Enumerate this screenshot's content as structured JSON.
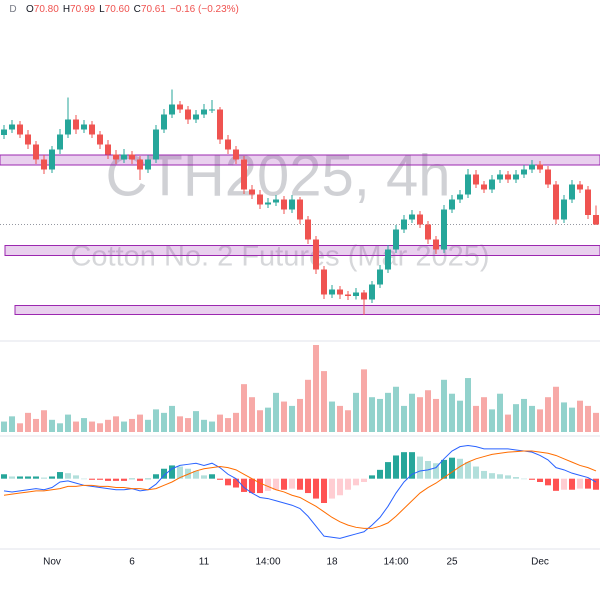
{
  "chart_data": {
    "type": "candlestick",
    "badge": "D",
    "legend": [
      {
        "key": "O",
        "value": "70.80"
      },
      {
        "key": "H",
        "value": "70.99"
      },
      {
        "key": "L",
        "value": "70.60"
      },
      {
        "key": "C",
        "value": "70.61"
      }
    ],
    "change": "−0.16 (−0.23%)",
    "title": "CTH2025, 4h",
    "subtitle": "Cotton No. 2 Futures (Mar 2025)",
    "categories": [
      null,
      null,
      null,
      null,
      null,
      null,
      "Nov",
      null,
      null,
      null,
      null,
      null,
      null,
      null,
      null,
      null,
      "6",
      null,
      null,
      null,
      null,
      null,
      null,
      null,
      null,
      "11",
      null,
      null,
      null,
      null,
      null,
      null,
      null,
      "14:00",
      null,
      null,
      null,
      null,
      null,
      null,
      null,
      "18",
      null,
      null,
      null,
      null,
      null,
      null,
      null,
      "14:00",
      null,
      null,
      null,
      null,
      null,
      null,
      "25",
      null,
      null,
      null,
      null,
      null,
      null,
      null,
      null,
      null,
      null,
      "Dec",
      null,
      null,
      null,
      null,
      null,
      null,
      null
    ],
    "open": [
      72.4,
      72.51,
      72.61,
      72.41,
      72.21,
      71.91,
      71.71,
      72.11,
      72.41,
      72.71,
      72.51,
      72.61,
      72.41,
      72.21,
      72.01,
      71.91,
      72.01,
      71.91,
      71.71,
      71.91,
      72.51,
      72.81,
      73.01,
      72.91,
      72.71,
      72.81,
      72.91,
      72.91,
      72.31,
      72.11,
      71.91,
      71.31,
      71.21,
      71.01,
      71.05,
      71.11,
      70.91,
      71.11,
      70.71,
      70.31,
      69.71,
      69.21,
      69.31,
      69.21,
      69.18,
      69.25,
      69.11,
      69.41,
      69.71,
      70.11,
      70.51,
      70.71,
      70.81,
      70.61,
      70.31,
      70.11,
      70.91,
      71.11,
      71.21,
      71.61,
      71.41,
      71.31,
      71.51,
      71.61,
      71.51,
      71.61,
      71.71,
      71.81,
      71.71,
      71.41,
      70.71,
      71.11,
      71.41,
      71.31,
      70.8
    ],
    "high": [
      72.6,
      72.7,
      72.68,
      72.5,
      72.28,
      72.0,
      72.18,
      72.52,
      73.15,
      72.8,
      72.7,
      72.68,
      72.48,
      72.3,
      72.1,
      72.12,
      72.08,
      71.98,
      72.0,
      72.6,
      72.92,
      73.31,
      73.08,
      72.98,
      72.9,
      73.02,
      73.1,
      72.96,
      72.4,
      72.18,
      71.98,
      71.4,
      71.3,
      71.14,
      71.2,
      71.18,
      71.2,
      71.16,
      70.78,
      70.38,
      69.78,
      69.4,
      69.38,
      69.28,
      69.34,
      69.3,
      69.48,
      69.8,
      70.2,
      70.6,
      70.8,
      70.9,
      70.88,
      70.68,
      70.38,
      71.0,
      71.2,
      71.3,
      71.72,
      71.7,
      71.48,
      71.6,
      71.7,
      71.68,
      71.7,
      71.8,
      71.9,
      71.88,
      71.78,
      71.48,
      71.2,
      71.5,
      71.48,
      71.38,
      70.99
    ],
    "low": [
      72.32,
      72.44,
      72.34,
      72.12,
      71.82,
      71.62,
      71.64,
      72.02,
      72.34,
      72.42,
      72.44,
      72.34,
      72.12,
      71.92,
      71.82,
      71.84,
      71.82,
      71.5,
      71.64,
      71.84,
      72.44,
      72.74,
      72.84,
      72.62,
      72.64,
      72.74,
      72.84,
      72.22,
      72.02,
      71.82,
      71.22,
      71.12,
      70.92,
      70.94,
      70.98,
      70.82,
      70.84,
      70.62,
      70.22,
      69.62,
      69.12,
      69.14,
      69.12,
      69.1,
      69.11,
      68.8,
      69.04,
      69.34,
      69.64,
      70.04,
      70.44,
      70.64,
      70.54,
      70.22,
      70.02,
      70.04,
      70.84,
      71.04,
      71.14,
      71.34,
      71.24,
      71.24,
      71.44,
      71.44,
      71.44,
      71.54,
      71.64,
      71.64,
      71.34,
      70.62,
      70.64,
      71.04,
      71.24,
      70.72,
      70.6
    ],
    "close": [
      72.51,
      72.61,
      72.41,
      72.21,
      71.91,
      71.71,
      72.11,
      72.41,
      72.71,
      72.51,
      72.61,
      72.41,
      72.21,
      72.01,
      71.91,
      72.01,
      71.91,
      71.71,
      71.91,
      72.51,
      72.81,
      73.01,
      72.91,
      72.71,
      72.81,
      72.91,
      72.91,
      72.31,
      72.11,
      71.91,
      71.31,
      71.21,
      71.01,
      71.05,
      71.11,
      70.91,
      71.11,
      70.71,
      70.31,
      69.71,
      69.21,
      69.31,
      69.21,
      69.18,
      69.25,
      69.11,
      69.41,
      69.71,
      70.11,
      70.51,
      70.71,
      70.81,
      70.61,
      70.31,
      70.11,
      70.91,
      71.11,
      71.21,
      71.61,
      71.41,
      71.31,
      71.51,
      71.61,
      71.51,
      71.61,
      71.71,
      71.81,
      71.71,
      71.41,
      70.71,
      71.11,
      71.41,
      71.31,
      70.8,
      70.61
    ],
    "up_color": "#26a69a",
    "down_color": "#ef5350",
    "ylim": [
      68.3,
      74.7
    ],
    "zones": [
      {
        "low": 71.8,
        "high": 72.0
      },
      {
        "low": 69.99,
        "high": 70.19
      },
      {
        "low": 68.81,
        "high": 68.99
      }
    ],
    "zone_color": "#9c27b0",
    "volume": {
      "values": [
        12,
        18,
        10,
        22,
        15,
        25,
        14,
        10,
        20,
        12,
        16,
        12,
        10,
        14,
        18,
        12,
        15,
        20,
        14,
        26,
        22,
        30,
        18,
        16,
        24,
        14,
        12,
        20,
        16,
        22,
        55,
        40,
        25,
        28,
        45,
        35,
        30,
        38,
        60,
        100,
        70,
        35,
        30,
        25,
        45,
        72,
        40,
        38,
        45,
        52,
        30,
        44,
        40,
        48,
        38,
        60,
        44,
        36,
        62,
        30,
        40,
        26,
        44,
        20,
        32,
        38,
        30,
        26,
        40,
        52,
        34,
        28,
        36,
        30,
        22
      ],
      "ylim": [
        0,
        100
      ]
    },
    "macd": {
      "macd": [
        -0.11,
        -0.12,
        -0.11,
        -0.1,
        -0.09,
        -0.1,
        -0.08,
        -0.03,
        -0.02,
        -0.04,
        -0.06,
        -0.07,
        -0.08,
        -0.09,
        -0.1,
        -0.1,
        -0.09,
        -0.11,
        -0.1,
        -0.05,
        0.03,
        0.09,
        0.12,
        0.13,
        0.14,
        0.12,
        0.14,
        0.1,
        0.04,
        0.0,
        -0.08,
        -0.13,
        -0.17,
        -0.18,
        -0.2,
        -0.22,
        -0.24,
        -0.27,
        -0.34,
        -0.43,
        -0.52,
        -0.53,
        -0.54,
        -0.52,
        -0.5,
        -0.48,
        -0.42,
        -0.35,
        -0.25,
        -0.13,
        -0.03,
        0.04,
        0.07,
        0.08,
        0.1,
        0.18,
        0.25,
        0.29,
        0.3,
        0.29,
        0.27,
        0.27,
        0.27,
        0.27,
        0.26,
        0.25,
        0.24,
        0.21,
        0.17,
        0.1,
        0.08,
        0.05,
        0.03,
        0.01,
        -0.03
      ],
      "signal": [
        -0.15,
        -0.14,
        -0.13,
        -0.12,
        -0.11,
        -0.11,
        -0.1,
        -0.09,
        -0.07,
        -0.07,
        -0.06,
        -0.06,
        -0.07,
        -0.07,
        -0.08,
        -0.08,
        -0.09,
        -0.09,
        -0.1,
        -0.09,
        -0.06,
        -0.03,
        0.01,
        0.04,
        0.07,
        0.09,
        0.1,
        0.11,
        0.1,
        0.08,
        0.04,
        0.0,
        -0.04,
        -0.07,
        -0.1,
        -0.12,
        -0.15,
        -0.17,
        -0.21,
        -0.25,
        -0.3,
        -0.35,
        -0.39,
        -0.42,
        -0.44,
        -0.45,
        -0.45,
        -0.43,
        -0.4,
        -0.34,
        -0.27,
        -0.2,
        -0.13,
        -0.08,
        -0.04,
        0.01,
        0.06,
        0.11,
        0.15,
        0.18,
        0.2,
        0.22,
        0.23,
        0.24,
        0.245,
        0.25,
        0.25,
        0.24,
        0.23,
        0.21,
        0.18,
        0.15,
        0.12,
        0.1,
        0.07
      ],
      "hist": [
        0.04,
        0.02,
        0.02,
        0.02,
        0.02,
        0.01,
        0.02,
        0.06,
        0.05,
        0.03,
        0.0,
        -0.01,
        -0.01,
        -0.02,
        -0.02,
        -0.02,
        0.0,
        -0.02,
        0.0,
        0.04,
        0.09,
        0.12,
        0.11,
        0.09,
        0.07,
        0.03,
        0.04,
        -0.01,
        -0.06,
        -0.08,
        -0.12,
        -0.13,
        -0.13,
        -0.11,
        -0.1,
        -0.1,
        -0.09,
        -0.1,
        -0.13,
        -0.18,
        -0.22,
        -0.18,
        -0.15,
        -0.1,
        -0.06,
        -0.03,
        0.03,
        0.08,
        0.15,
        0.21,
        0.24,
        0.24,
        0.2,
        0.16,
        0.14,
        0.17,
        0.19,
        0.18,
        0.15,
        0.11,
        0.07,
        0.05,
        0.04,
        0.03,
        0.015,
        0.0,
        -0.01,
        -0.03,
        -0.06,
        -0.11,
        -0.1,
        -0.1,
        -0.09,
        -0.09,
        -0.1
      ],
      "ylim": [
        -0.6,
        0.35
      ],
      "macd_color": "#2962ff",
      "signal_color": "#ff6d00",
      "hist_colors": [
        "#26a69a",
        "#b2dfdb",
        "#ff5252",
        "#ffcdd2"
      ]
    }
  }
}
